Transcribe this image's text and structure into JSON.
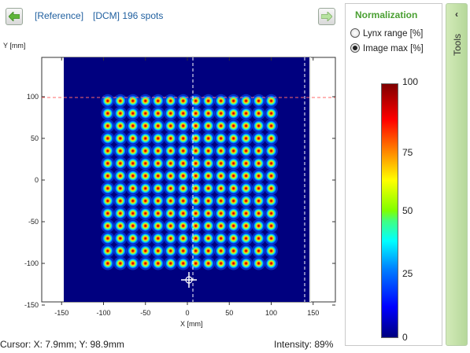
{
  "header": {
    "reference_label": "[Reference]",
    "dcm_label": "[DCM] 196 spots"
  },
  "plot": {
    "y_axis_title": "Y [mm]",
    "x_axis_title": "X [mm]",
    "x_ticks": [
      "-150",
      "-100",
      "-50",
      "0",
      "50",
      "100",
      "150"
    ],
    "y_ticks": [
      "100",
      "50",
      "0",
      "-50",
      "-100",
      "-150"
    ],
    "spot_grid": {
      "columns": 14,
      "rows": 14,
      "x_range_mm": [
        -95,
        100
      ],
      "y_range_mm": [
        -100,
        95
      ]
    },
    "crosshair_mm": {
      "x": 7.9,
      "y": 98.9
    }
  },
  "status": {
    "cursor_text": "Cursor: X: 7.9mm; Y: 98.9mm",
    "intensity_text": "Intensity: 89%"
  },
  "normalization": {
    "title": "Normalization",
    "options": [
      {
        "label": "Lynx range [%]",
        "checked": false
      },
      {
        "label": "Image max [%]",
        "checked": true
      }
    ],
    "colorbar_labels": [
      "100",
      "75",
      "50",
      "25",
      "0"
    ]
  },
  "tools": {
    "label": "Tools",
    "collapse_icon": "chevron-left-icon"
  },
  "colors": {
    "background_map": "#00007f",
    "crosshair_x": "#ff5a5a",
    "crosshair_y": "#ffffff",
    "title_blue": "#1f5f9f",
    "panel_green": "#4aa032"
  }
}
